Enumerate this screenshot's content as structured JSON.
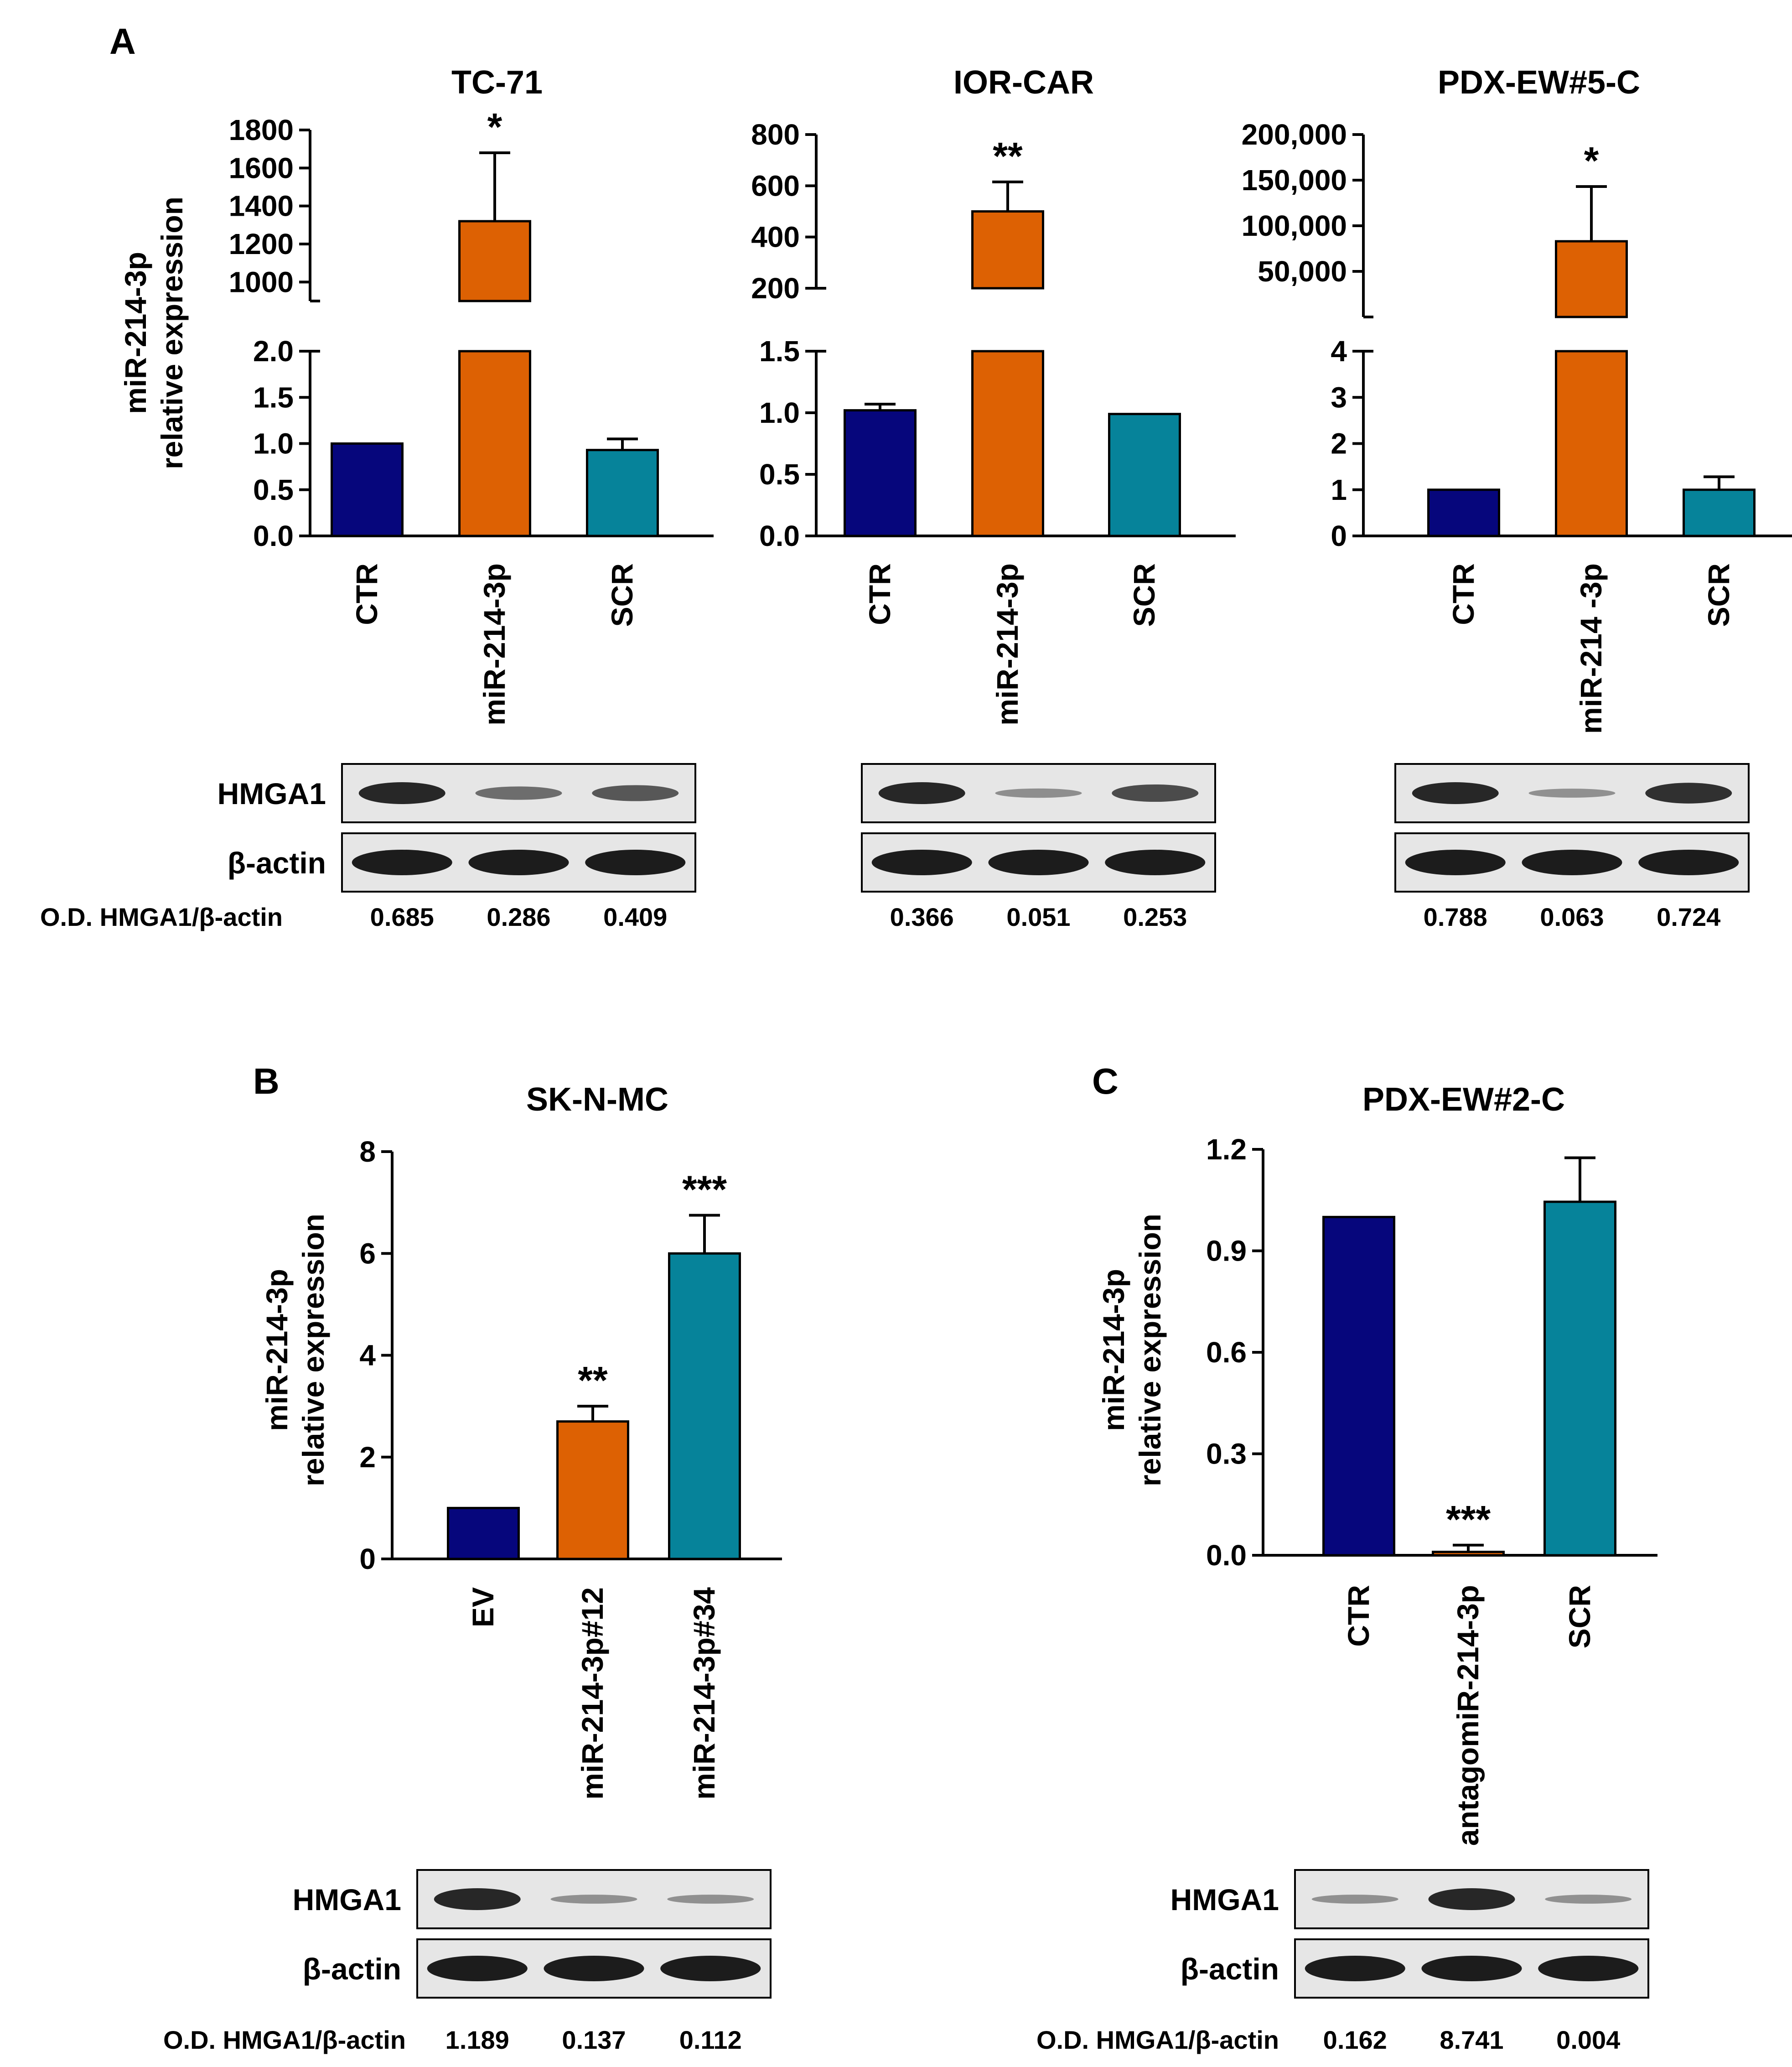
{
  "colors": {
    "ctr": "#06067c",
    "treat": "#dd6103",
    "scr": "#06839a",
    "axis": "#000000",
    "blot_bg": "#e6e6e6",
    "band": "#1c1c1c"
  },
  "y_axis_label": [
    "miR-214-3p",
    "relative expression"
  ],
  "blot_labels": {
    "hmga1": "HMGA1",
    "actin": "β-actin",
    "od": "O.D. HMGA1/β-actin"
  },
  "panel_letters": {
    "a": "A",
    "b": "B",
    "c": "C"
  },
  "chart_data": [
    {
      "id": "tc71",
      "panel": "A",
      "type": "bar",
      "title": "TC-71",
      "broken_axis": true,
      "categories": [
        "CTR",
        "miR-214-3p",
        "SCR"
      ],
      "values": [
        1.0,
        1320,
        0.93
      ],
      "errors": [
        0,
        360,
        0.12
      ],
      "significance": [
        "",
        "*",
        ""
      ],
      "lower_axis": {
        "ylim": [
          0,
          2.0
        ],
        "ticks": [
          "0.0",
          "0.5",
          "1.0",
          "1.5",
          "2.0"
        ]
      },
      "upper_axis": {
        "ylim": [
          900,
          1800
        ],
        "ticks": [
          "1000",
          "1200",
          "1400",
          "1600",
          "1800"
        ]
      },
      "blot_od": [
        "0.685",
        "0.286",
        "0.409"
      ]
    },
    {
      "id": "iorcar",
      "panel": "A",
      "type": "bar",
      "title": "IOR-CAR",
      "broken_axis": true,
      "categories": [
        "CTR",
        "miR-214-3p",
        "SCR"
      ],
      "values": [
        1.02,
        500,
        0.99
      ],
      "errors": [
        0.05,
        115,
        0
      ],
      "significance": [
        "",
        "**",
        ""
      ],
      "lower_axis": {
        "ylim": [
          0,
          1.5
        ],
        "ticks": [
          "0.0",
          "0.5",
          "1.0",
          "1.5"
        ]
      },
      "upper_axis": {
        "ylim": [
          200,
          800
        ],
        "ticks": [
          "200",
          "400",
          "600",
          "800"
        ]
      },
      "blot_od": [
        "0.366",
        "0.051",
        "0.253"
      ]
    },
    {
      "id": "pdx5",
      "panel": "A",
      "type": "bar",
      "title": "PDX-EW#5-C",
      "broken_axis": true,
      "categories": [
        "CTR",
        "miR-214 -3p",
        "SCR"
      ],
      "values": [
        1.0,
        83000,
        1.0
      ],
      "errors": [
        0,
        60000,
        0.28
      ],
      "significance": [
        "",
        "*",
        ""
      ],
      "lower_axis": {
        "ylim": [
          0,
          4
        ],
        "ticks": [
          "0",
          "1",
          "2",
          "3",
          "4"
        ]
      },
      "upper_axis": {
        "ylim": [
          0,
          200000
        ],
        "ticks": [
          "50,000",
          "100,000",
          "150,000",
          "200,000"
        ]
      },
      "blot_od": [
        "0.788",
        "0.063",
        "0.724"
      ]
    },
    {
      "id": "sknmc",
      "panel": "B",
      "type": "bar",
      "title": "SK-N-MC",
      "categories": [
        "EV",
        "miR-214-3p#12",
        "miR-214-3p#34"
      ],
      "values": [
        1.0,
        2.7,
        6.0
      ],
      "errors": [
        0,
        0.3,
        0.75
      ],
      "significance": [
        "",
        "**",
        "***"
      ],
      "ylim": [
        0,
        8
      ],
      "ticks": [
        "0",
        "2",
        "4",
        "6",
        "8"
      ],
      "blot_od": [
        "1.189",
        "0.137",
        "0.112"
      ]
    },
    {
      "id": "pdx2",
      "panel": "C",
      "type": "bar",
      "title": "PDX-EW#2-C",
      "categories": [
        "CTR",
        "antagomiR-214-3p",
        "SCR"
      ],
      "values": [
        1.0,
        0.01,
        1.045
      ],
      "errors": [
        0,
        0.02,
        0.13
      ],
      "significance": [
        "",
        "***",
        ""
      ],
      "ylim": [
        0,
        1.2
      ],
      "ticks": [
        "0.0",
        "0.3",
        "0.6",
        "0.9",
        "1.2"
      ],
      "blot_od": [
        "0.162",
        "8.741",
        "0.004"
      ]
    }
  ]
}
